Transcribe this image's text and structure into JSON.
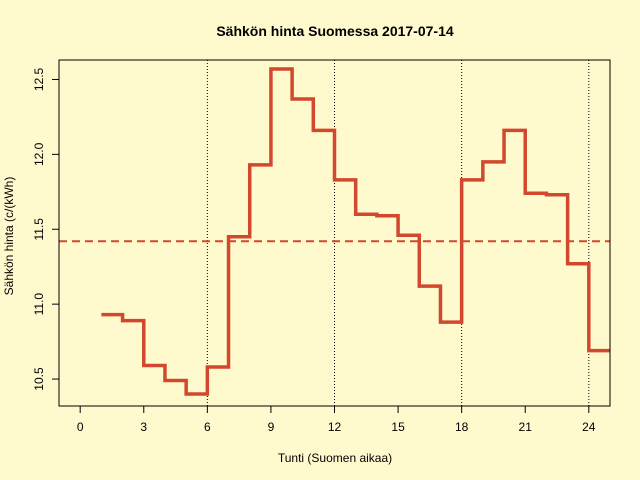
{
  "chart_data": {
    "type": "line",
    "step": true,
    "title": "Sähkön hinta Suomessa 2017-07-14",
    "xlabel": "Tunti (Suomen aikaa)",
    "ylabel": "Sähkön hinta (c/(kWh)",
    "xlim": [
      -1,
      25
    ],
    "ylim": [
      10.32,
      12.63
    ],
    "x_ticks": [
      0,
      3,
      6,
      9,
      12,
      15,
      18,
      21,
      24
    ],
    "y_ticks": [
      10.5,
      11.0,
      11.5,
      12.0,
      12.5
    ],
    "y_tick_labels": [
      "10.5",
      "11.0",
      "11.5",
      "12.0",
      "12.5"
    ],
    "vertical_reference_lines_x": [
      6,
      12,
      18,
      24
    ],
    "mean_line_y": 11.42,
    "series": [
      {
        "x": [
          1,
          2,
          3,
          4,
          5,
          6,
          7,
          8,
          9,
          10,
          11,
          12,
          13,
          14,
          15,
          16,
          17,
          18,
          19,
          20,
          21,
          22,
          23,
          24,
          25
        ],
        "values": [
          10.93,
          10.89,
          10.59,
          10.49,
          10.4,
          10.58,
          11.45,
          11.93,
          12.57,
          12.37,
          12.16,
          11.83,
          11.6,
          11.59,
          11.46,
          11.12,
          10.88,
          11.83,
          11.95,
          12.16,
          11.74,
          11.73,
          11.27,
          10.69,
          10.69
        ]
      }
    ],
    "colors": {
      "background": "#fffacd",
      "series": "#d2482e",
      "mean_line": "#d2482e",
      "reference_lines": "#000000"
    }
  }
}
